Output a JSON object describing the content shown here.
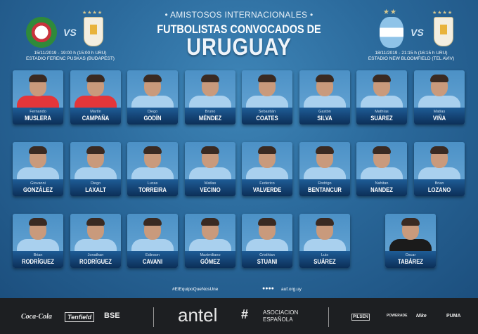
{
  "header": {
    "subtitle": "• AMISTOSOS INTERNACIONALES •",
    "title_line1": "FUTBOLISTAS CONVOCADOS DE",
    "title_line2": "URUGUAY"
  },
  "matches": [
    {
      "home": "Hungría",
      "away": "Uruguay",
      "vs": "VS",
      "datetime": "15/11/2019 - 19:00 h (15:00 h URU)",
      "venue": "ESTADIO FERENC PUSKAS (BUDAPEST)"
    },
    {
      "home": "Argentina",
      "away": "Uruguay",
      "vs": "VS",
      "datetime": "18/11/2019 - 21:15 h (16:15 h URU)",
      "venue": "ESTADIO NEW BLOOMFIELD (TEL AVIV)"
    }
  ],
  "players": [
    {
      "first": "Fernando",
      "last": "MUSLERA",
      "gk": true
    },
    {
      "first": "Martín",
      "last": "CAMPAÑA",
      "gk": true
    },
    {
      "first": "Diego",
      "last": "GODÍN"
    },
    {
      "first": "Bruno",
      "last": "MÉNDEZ"
    },
    {
      "first": "Sebastián",
      "last": "COATES"
    },
    {
      "first": "Gastón",
      "last": "SILVA"
    },
    {
      "first": "Mathías",
      "last": "SUÁREZ"
    },
    {
      "first": "Matías",
      "last": "VIÑA"
    },
    {
      "first": "Giovanni",
      "last": "GONZÁLEZ"
    },
    {
      "first": "Diego",
      "last": "LAXALT"
    },
    {
      "first": "Lucas",
      "last": "TORREIRA"
    },
    {
      "first": "Matías",
      "last": "VECINO"
    },
    {
      "first": "Federico",
      "last": "VALVERDE"
    },
    {
      "first": "Rodrigo",
      "last": "BENTANCUR"
    },
    {
      "first": "Nahitan",
      "last": "NANDEZ"
    },
    {
      "first": "Brian",
      "last": "LOZANO"
    },
    {
      "first": "Brian",
      "last": "RODRÍGUEZ"
    },
    {
      "first": "Jonathan",
      "last": "RODRÍGUEZ"
    },
    {
      "first": "Edinson",
      "last": "CAVANI"
    },
    {
      "first": "Maximiliano",
      "last": "GÓMEZ"
    },
    {
      "first": "Cristhian",
      "last": "STUANI"
    },
    {
      "first": "Luis",
      "last": "SUÁREZ"
    }
  ],
  "coach": {
    "first": "Oscar",
    "last": "TABÁREZ"
  },
  "footer": {
    "hashtag": "#ElEquipoQueNosUne",
    "website": "auf.org.uy",
    "social_icons": [
      "facebook-icon",
      "twitter-icon",
      "youtube-icon",
      "instagram-icon"
    ]
  },
  "sponsors": [
    "Coca-Cola",
    "Tenfield",
    "BSE",
    "antel",
    "ASOCIACION ESPAÑOLA",
    "PILSEN",
    "POWERADE",
    "Nike",
    "PUMA"
  ],
  "colors": {
    "background": "#2b6a9c",
    "plate": "#0c2f58",
    "footer": "#1d1f22",
    "gk_shirt": "#e3363a",
    "shirt": "#a9d0ee"
  }
}
